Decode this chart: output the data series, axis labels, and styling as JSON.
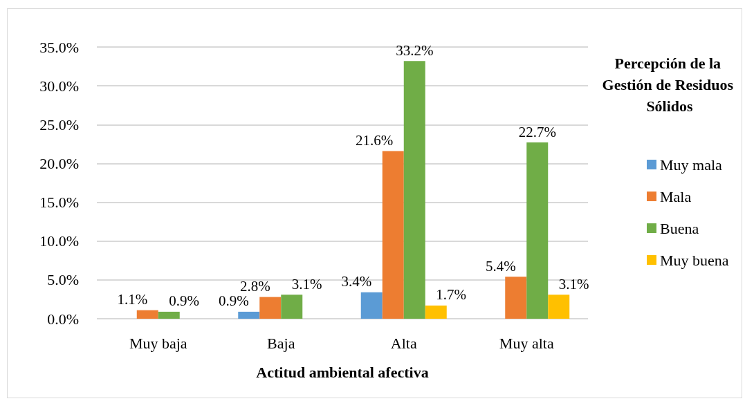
{
  "chart_data": {
    "type": "bar",
    "xlabel": "Actitud ambiental afectiva",
    "legend_title": "Percepción de la Gestión de Residuos Sólidos",
    "categories": [
      "Muy baja",
      "Baja",
      "Alta",
      "Muy alta"
    ],
    "series": [
      {
        "name": "Muy mala",
        "color": "#5b9bd5",
        "values": [
          0,
          0.9,
          3.4,
          0
        ],
        "value_labels": [
          null,
          "0.9%",
          "3.4%",
          null
        ]
      },
      {
        "name": "Mala",
        "color": "#ed7d31",
        "values": [
          1.1,
          2.8,
          21.6,
          5.4
        ],
        "value_labels": [
          "1.1%",
          "2.8%",
          "21.6%",
          "5.4%"
        ]
      },
      {
        "name": "Buena",
        "color": "#70ad47",
        "values": [
          0.9,
          3.1,
          33.2,
          22.7
        ],
        "value_labels": [
          "0.9%",
          "3.1%",
          "33.2%",
          "22.7%"
        ]
      },
      {
        "name": "Muy buena",
        "color": "#ffc000",
        "values": [
          0,
          0,
          1.7,
          3.1
        ],
        "value_labels": [
          null,
          null,
          "1.7%",
          "3.1%"
        ]
      }
    ],
    "ylim": [
      0,
      35
    ],
    "yticks": [
      {
        "value": 0,
        "label": "0.0%"
      },
      {
        "value": 5,
        "label": "5.0%"
      },
      {
        "value": 10,
        "label": "10.0%"
      },
      {
        "value": 15,
        "label": "15.0%"
      },
      {
        "value": 20,
        "label": "20.0%"
      },
      {
        "value": 25,
        "label": "25.0%"
      },
      {
        "value": 30,
        "label": "30.0%"
      },
      {
        "value": 35,
        "label": "35.0%"
      }
    ],
    "grid": "y",
    "legend": "right"
  }
}
